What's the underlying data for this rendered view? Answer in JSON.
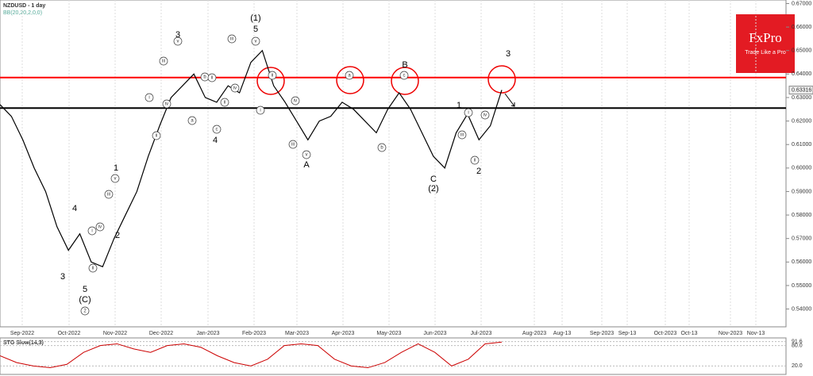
{
  "chart_data": {
    "type": "line",
    "title": "NZDUSD - 1 day",
    "subtitle": "BB(20,20,2,0,0)",
    "logo": {
      "brand": "FxPro",
      "tagline": "Trade Like a Pro"
    },
    "values": [
      0.627,
      0.622,
      0.612,
      0.6,
      0.59,
      0.575,
      0.565,
      0.572,
      0.56,
      0.558,
      0.57,
      0.58,
      0.59,
      0.605,
      0.618,
      0.63,
      0.635,
      0.64,
      0.63,
      0.628,
      0.635,
      0.632,
      0.645,
      0.65,
      0.635,
      0.628,
      0.62,
      0.612,
      0.62,
      0.622,
      0.628,
      0.625,
      0.62,
      0.615,
      0.625,
      0.632,
      0.625,
      0.615,
      0.605,
      0.6,
      0.615,
      0.623,
      0.612,
      0.618,
      0.6332
    ],
    "color": "#000000",
    "ylim": [
      0.5385,
      0.6705
    ],
    "yticks": [
      {
        "value": 0.67,
        "label": "0.67000"
      },
      {
        "value": 0.66,
        "label": "0.66000"
      },
      {
        "value": 0.65,
        "label": "0.65000"
      },
      {
        "value": 0.64,
        "label": "0.64000"
      },
      {
        "value": 0.63,
        "label": "0.63000"
      },
      {
        "value": 0.62,
        "label": "0.62000"
      },
      {
        "value": 0.61,
        "label": "0.61000"
      },
      {
        "value": 0.6,
        "label": "0.60000"
      },
      {
        "value": 0.59,
        "label": "0.59000"
      },
      {
        "value": 0.58,
        "label": "0.58000"
      },
      {
        "value": 0.57,
        "label": "0.57000"
      },
      {
        "value": 0.56,
        "label": "0.56000"
      },
      {
        "value": 0.55,
        "label": "0.55000"
      },
      {
        "value": 0.54,
        "label": "0.54000"
      }
    ],
    "current_price": {
      "value": 0.63316,
      "label": "0.63316"
    },
    "levels": [
      {
        "value": 0.6385,
        "color": "#ff0000"
      },
      {
        "value": 0.6255,
        "color": "#000000"
      }
    ],
    "x_labels": [
      "Sep-2022",
      "Oct-2022",
      "Nov-2022",
      "Dec-2022",
      "Jan-2023",
      "Feb-2023",
      "Mar-2023",
      "Apr-2023",
      "May-2023",
      "Jun-2023",
      "Jul-2023",
      "Aug-2023",
      "Aug-13",
      "Sep-2023",
      "Sep-13",
      "Oct-2023",
      "Oct-13",
      "Nov-2023",
      "Nov-13"
    ],
    "wave_labels": [
      "(1)",
      "5",
      "3",
      "4",
      "B",
      "A",
      "C",
      "(2)",
      "1",
      "2",
      "3",
      "1",
      "2",
      "4",
      "3",
      "5",
      "(C)"
    ],
    "circled_labels": [
      "2",
      "iii",
      "iv",
      "i",
      "ii",
      "v",
      "a",
      "b",
      "c",
      "iii",
      "iv",
      "ii",
      "v",
      "i",
      "ii",
      "iii",
      "iv",
      "v",
      "a",
      "b",
      "c",
      "i",
      "ii",
      "iii",
      "iv",
      "ii",
      "i",
      "iv",
      "iii",
      "ii",
      "v"
    ],
    "oscillator": {
      "title": "STO Slow(14,3)",
      "ylim": [
        0,
        100
      ],
      "yticks": [
        {
          "value": 91.6,
          "label": "91.6"
        },
        {
          "value": 80.0,
          "label": "80.0"
        },
        {
          "value": 20.0,
          "label": "20.0"
        }
      ],
      "values": [
        50,
        30,
        20,
        15,
        25,
        60,
        80,
        85,
        70,
        60,
        80,
        85,
        75,
        50,
        30,
        20,
        40,
        80,
        85,
        80,
        40,
        20,
        15,
        30,
        60,
        85,
        60,
        20,
        40,
        85,
        90
      ],
      "color": "#cc0000"
    }
  }
}
